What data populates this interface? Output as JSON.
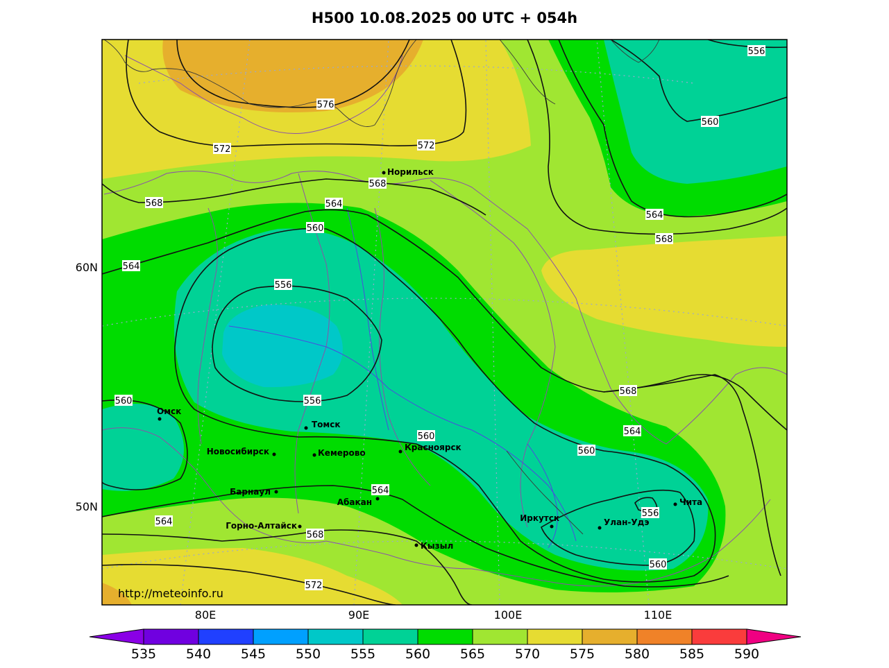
{
  "title": "H500  10.08.2025 00 UTC + 054h",
  "source": "http://meteoinfo.ru",
  "lat_labels": [
    "60N",
    "50N"
  ],
  "lon_labels": [
    "80E",
    "90E",
    "100E",
    "110E"
  ],
  "colorbar": {
    "ticks": [
      "535",
      "540",
      "545",
      "550",
      "555",
      "560",
      "565",
      "570",
      "575",
      "580",
      "585",
      "590"
    ],
    "colors": [
      "#8a00e6",
      "#7000e0",
      "#2040ff",
      "#00a0ff",
      "#00c8c8",
      "#00d296",
      "#00dc00",
      "#a0e632",
      "#e6dc32",
      "#e6af2d",
      "#f08228",
      "#fa3c3c",
      "#f00082"
    ]
  },
  "contour_labels": [
    {
      "id": "c576",
      "text": "576"
    },
    {
      "id": "c572a",
      "text": "572"
    },
    {
      "id": "c572b",
      "text": "572"
    },
    {
      "id": "c572c",
      "text": "572"
    },
    {
      "id": "c568a",
      "text": "568"
    },
    {
      "id": "c568b",
      "text": "568"
    },
    {
      "id": "c568c",
      "text": "568"
    },
    {
      "id": "c568d",
      "text": "568"
    },
    {
      "id": "c568e",
      "text": "568"
    },
    {
      "id": "c564a",
      "text": "564"
    },
    {
      "id": "c564b",
      "text": "564"
    },
    {
      "id": "c564c",
      "text": "564"
    },
    {
      "id": "c564d",
      "text": "564"
    },
    {
      "id": "c564e",
      "text": "564"
    },
    {
      "id": "c564f",
      "text": "564"
    },
    {
      "id": "c560a",
      "text": "560"
    },
    {
      "id": "c560b",
      "text": "560"
    },
    {
      "id": "c560c",
      "text": "560"
    },
    {
      "id": "c560d",
      "text": "560"
    },
    {
      "id": "c560e",
      "text": "560"
    },
    {
      "id": "c560f",
      "text": "560"
    },
    {
      "id": "c556a",
      "text": "556"
    },
    {
      "id": "c556b",
      "text": "556"
    },
    {
      "id": "c556c",
      "text": "556"
    },
    {
      "id": "c556d",
      "text": "556"
    }
  ],
  "cities": [
    {
      "name": "Норильск"
    },
    {
      "name": "Омск"
    },
    {
      "name": "Томск"
    },
    {
      "name": "Новосибирск"
    },
    {
      "name": "Кемерово"
    },
    {
      "name": "Красноярск"
    },
    {
      "name": "Барнаул"
    },
    {
      "name": "Абакан"
    },
    {
      "name": "Горно-Алтайск"
    },
    {
      "name": "Кызыл"
    },
    {
      "name": "Иркутск"
    },
    {
      "name": "Улан-Удэ"
    },
    {
      "name": "Чита"
    }
  ]
}
